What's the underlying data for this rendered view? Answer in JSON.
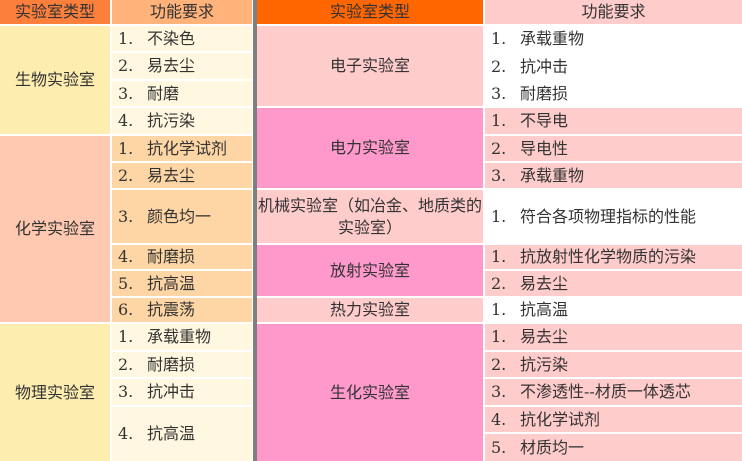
{
  "colors": {
    "left_header_type": "#fc7f3c",
    "left_header_func": "#ffb27a",
    "right_header_type": "#ff6600",
    "right_header_func": "#ffcccc",
    "bio_type": "#fdeeb0",
    "bio_item": "#fff7df",
    "chem_type": "#ffc8b0",
    "chem_item": "#fed5a4",
    "pink_dark": "#ff99cc",
    "pink_light": "#ffcccc",
    "white": "#ffffff",
    "divider": "#7f7f7f"
  },
  "left": {
    "header": {
      "type": "实验室类型",
      "func": "功能要求"
    },
    "groups": [
      {
        "name": "生物实验室",
        "items": [
          "1.|不染色",
          "2.|易去尘",
          "3.|耐磨",
          "4.|抗污染"
        ]
      },
      {
        "name": "化学实验室",
        "items": [
          "1.|抗化学试剂",
          "2.|易去尘",
          "3.|颜色均一",
          "4.|耐磨损",
          "5.|抗高温",
          "6.|抗震荡"
        ]
      },
      {
        "name": "物理实验室",
        "items": [
          "1.|承载重物",
          "2.|耐磨损",
          "3.|抗冲击",
          "4.|抗高温"
        ]
      }
    ]
  },
  "right": {
    "header": {
      "type": "实验室类型",
      "func": "功能要求"
    },
    "groups": [
      {
        "name": "电子实验室",
        "items": [
          "1.|承载重物",
          "2.|抗冲击",
          "3.|耐磨损"
        ]
      },
      {
        "name": "电力实验室",
        "items": [
          "1.|不导电",
          "2.|导电性",
          "3.|承载重物"
        ]
      },
      {
        "name": "机械实验室（如冶金、地质类的实验室）",
        "items": [
          "1.|符合各项物理指标的性能"
        ]
      },
      {
        "name": "放射实验室",
        "items": [
          "1.|抗放射性化学物质的污染",
          "2.|易去尘"
        ]
      },
      {
        "name": "热力实验室",
        "items": [
          "1.|抗高温"
        ]
      },
      {
        "name": "生化实验室",
        "items": [
          "1.|易去尘",
          "2.|抗污染",
          "3.|不渗透性--材质一体透芯",
          "4.|抗化学试剂",
          "5.|材质均一"
        ]
      }
    ]
  }
}
